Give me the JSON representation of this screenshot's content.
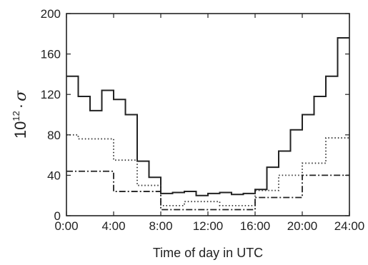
{
  "chart_data": {
    "type": "line",
    "style": "step",
    "xlabel": "Time of day in UTC",
    "ylabel": {
      "prefix": "10",
      "superscript": "12",
      "separator": "·",
      "symbol": "σ"
    },
    "xlim": [
      0,
      24
    ],
    "ylim": [
      0,
      200
    ],
    "xticks": [
      0,
      4,
      8,
      12,
      16,
      20,
      24
    ],
    "xtick_labels": [
      "0:00",
      "4:00",
      "8:00",
      "12:00",
      "16:00",
      "20:00",
      "24:00"
    ],
    "yticks": [
      0,
      40,
      80,
      120,
      160,
      200
    ],
    "ytick_labels": [
      "0",
      "40",
      "80",
      "120",
      "160",
      "200"
    ],
    "grid": false,
    "legend": "none",
    "bin_edges": [
      0,
      1,
      2,
      3,
      4,
      5,
      6,
      7,
      8,
      9,
      10,
      11,
      12,
      13,
      14,
      15,
      16,
      17,
      18,
      19,
      20,
      21,
      22,
      23,
      24
    ],
    "series": [
      {
        "dash": "solid",
        "color": "#222222",
        "values": [
          138,
          118,
          104,
          124,
          115,
          100,
          54,
          38,
          22,
          23,
          24,
          20,
          22,
          23,
          21,
          22,
          26,
          48,
          64,
          85,
          100,
          118,
          138,
          176
        ]
      },
      {
        "dash": "dotted",
        "color": "#333333",
        "values": [
          80,
          76,
          76,
          76,
          55,
          55,
          30,
          30,
          10,
          10,
          14,
          14,
          14,
          10,
          10,
          10,
          25,
          25,
          40,
          40,
          52,
          52,
          77,
          77
        ]
      },
      {
        "dash": "dashdot",
        "color": "#222222",
        "values": [
          44,
          44,
          44,
          44,
          24,
          24,
          24,
          24,
          6,
          6,
          6,
          6,
          6,
          6,
          6,
          6,
          18,
          18,
          18,
          18,
          40,
          40,
          40,
          40
        ]
      }
    ]
  }
}
